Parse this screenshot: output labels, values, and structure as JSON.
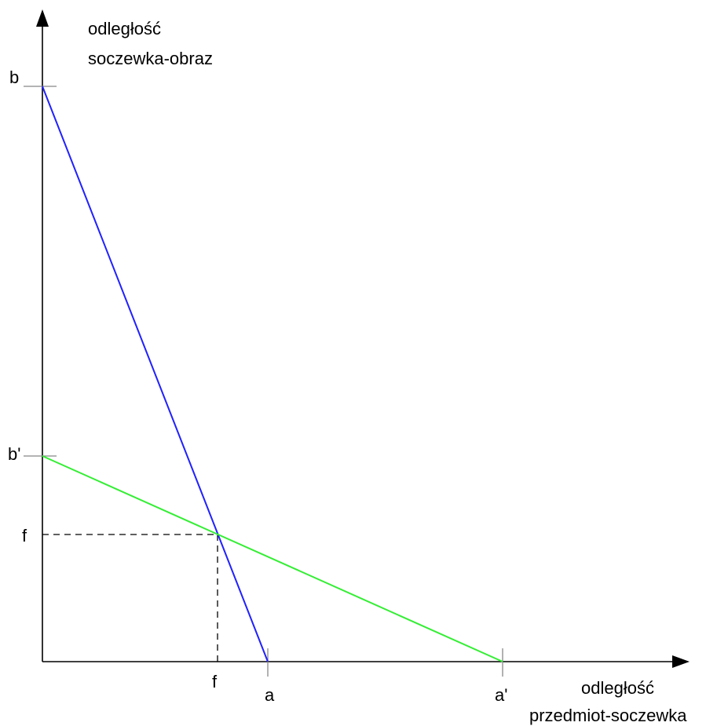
{
  "y_axis": {
    "title_line1": "odległość",
    "title_line2": "soczewka-obraz"
  },
  "x_axis": {
    "title_line1": "odległość",
    "title_line2": "przedmiot-soczewka"
  },
  "labels": {
    "b": "b",
    "b_prime": "b'",
    "f_y": "f",
    "f_x": "f",
    "a": "a",
    "a_prime": "a'"
  },
  "colors": {
    "line_blue": "#2020ff",
    "line_green": "#33ee33",
    "axis": "#000000",
    "guide": "#000000"
  }
}
